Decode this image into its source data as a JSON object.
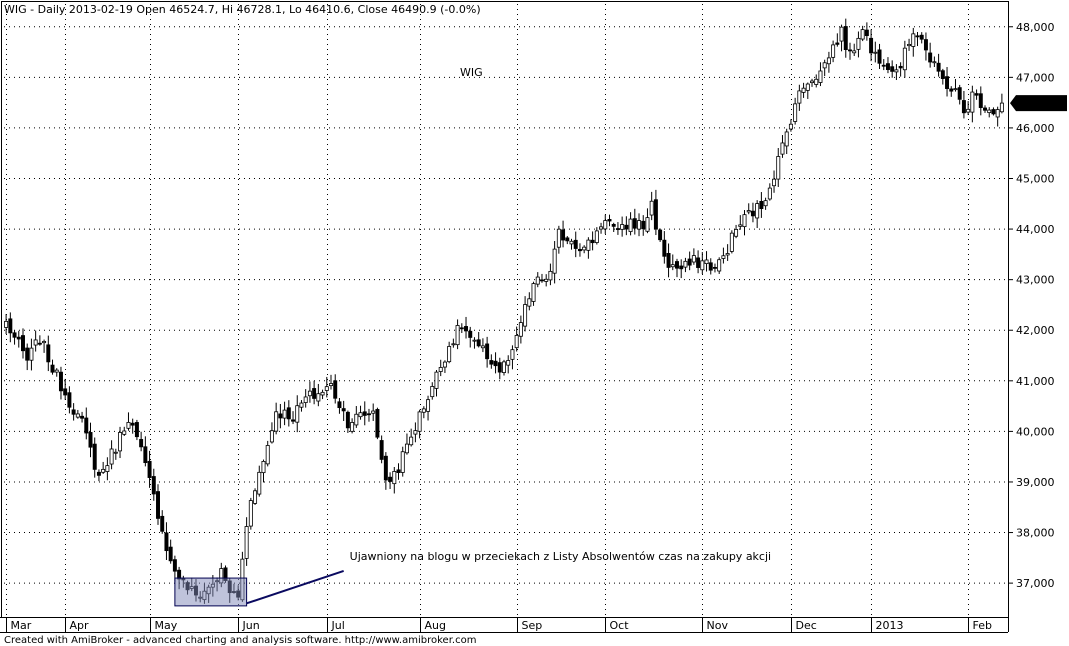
{
  "header": {
    "text": "WIG - Daily 2013-02-19 Open 46524.7, Hi 46728.1, Lo 46410.6, Close 46490.9 (-0.0%)"
  },
  "footer": {
    "text": "Created with AmiBroker - advanced charting and analysis software. http://www.amibroker.com"
  },
  "chart_data": {
    "type": "candlestick",
    "title": "WIG",
    "ylim": [
      36350,
      48450
    ],
    "y_ticks": [
      37000,
      38000,
      39000,
      40000,
      41000,
      42000,
      43000,
      44000,
      45000,
      46000,
      47000,
      48000
    ],
    "y_tick_labels": [
      "37,000",
      "38,000",
      "39,000",
      "40,000",
      "41,000",
      "42,000",
      "43,000",
      "44,000",
      "45,000",
      "46,000",
      "47,000",
      "48,000"
    ],
    "x_labels": [
      "Mar",
      "Apr",
      "May",
      "Jun",
      "Jul",
      "Aug",
      "Sep",
      "Oct",
      "Nov",
      "Dec",
      "2013",
      "Feb"
    ],
    "x_label_bars": [
      0,
      14,
      34,
      55,
      76,
      98,
      121,
      142,
      165,
      186,
      205,
      228
    ],
    "last_close_label": "46,490.9",
    "last_close": 46490.9,
    "grid": "dotted",
    "annotation": {
      "text": "Ujawniony na blogu w przeciekach z Listy Absolwentów czas na zakupy akcji",
      "highlight": {
        "bar_start": 40,
        "bar_end": 57,
        "y_low": 36550,
        "y_high": 37100
      },
      "arrow_to": {
        "bar": 57,
        "value": 36600
      },
      "text_anchor": {
        "bar": 80,
        "value": 37300
      }
    },
    "anchors": [
      [
        0,
        42150
      ],
      [
        5,
        41400
      ],
      [
        8,
        41850
      ],
      [
        11,
        41250
      ],
      [
        14,
        40750
      ],
      [
        18,
        40150
      ],
      [
        22,
        39100
      ],
      [
        26,
        39700
      ],
      [
        29,
        40300
      ],
      [
        32,
        39600
      ],
      [
        36,
        38400
      ],
      [
        39,
        37400
      ],
      [
        42,
        37000
      ],
      [
        45,
        36750
      ],
      [
        48,
        36900
      ],
      [
        51,
        37200
      ],
      [
        53,
        36850
      ],
      [
        55,
        36700
      ],
      [
        56,
        37500
      ],
      [
        58,
        38700
      ],
      [
        61,
        39400
      ],
      [
        64,
        40400
      ],
      [
        68,
        40300
      ],
      [
        71,
        40650
      ],
      [
        74,
        40750
      ],
      [
        77,
        40900
      ],
      [
        79,
        40550
      ],
      [
        81,
        40200
      ],
      [
        84,
        40300
      ],
      [
        87,
        40400
      ],
      [
        89,
        39500
      ],
      [
        90,
        38950
      ],
      [
        93,
        39300
      ],
      [
        96,
        39900
      ],
      [
        99,
        40500
      ],
      [
        102,
        41100
      ],
      [
        105,
        41700
      ],
      [
        108,
        42100
      ],
      [
        111,
        41700
      ],
      [
        114,
        41500
      ],
      [
        117,
        41200
      ],
      [
        120,
        41500
      ],
      [
        122,
        42150
      ],
      [
        125,
        42900
      ],
      [
        127,
        43000
      ],
      [
        129,
        43100
      ],
      [
        131,
        43900
      ],
      [
        134,
        43800
      ],
      [
        137,
        43600
      ],
      [
        139,
        43800
      ],
      [
        142,
        44250
      ],
      [
        145,
        43900
      ],
      [
        148,
        44150
      ],
      [
        151,
        44050
      ],
      [
        153,
        44500
      ],
      [
        155,
        43700
      ],
      [
        157,
        43300
      ],
      [
        160,
        43200
      ],
      [
        163,
        43350
      ],
      [
        166,
        43350
      ],
      [
        168,
        43200
      ],
      [
        170,
        43450
      ],
      [
        173,
        44000
      ],
      [
        176,
        44300
      ],
      [
        179,
        44450
      ],
      [
        182,
        45100
      ],
      [
        185,
        45900
      ],
      [
        187,
        46500
      ],
      [
        190,
        46950
      ],
      [
        193,
        47100
      ],
      [
        196,
        47600
      ],
      [
        198,
        47900
      ],
      [
        200,
        47400
      ],
      [
        203,
        48050
      ],
      [
        205,
        47500
      ],
      [
        208,
        47350
      ],
      [
        211,
        47150
      ],
      [
        213,
        47450
      ],
      [
        215,
        47950
      ],
      [
        217,
        47800
      ],
      [
        219,
        47300
      ],
      [
        222,
        46950
      ],
      [
        225,
        46700
      ],
      [
        227,
        46300
      ],
      [
        229,
        46650
      ],
      [
        232,
        46450
      ],
      [
        234,
        46350
      ],
      [
        236,
        46500
      ]
    ]
  }
}
